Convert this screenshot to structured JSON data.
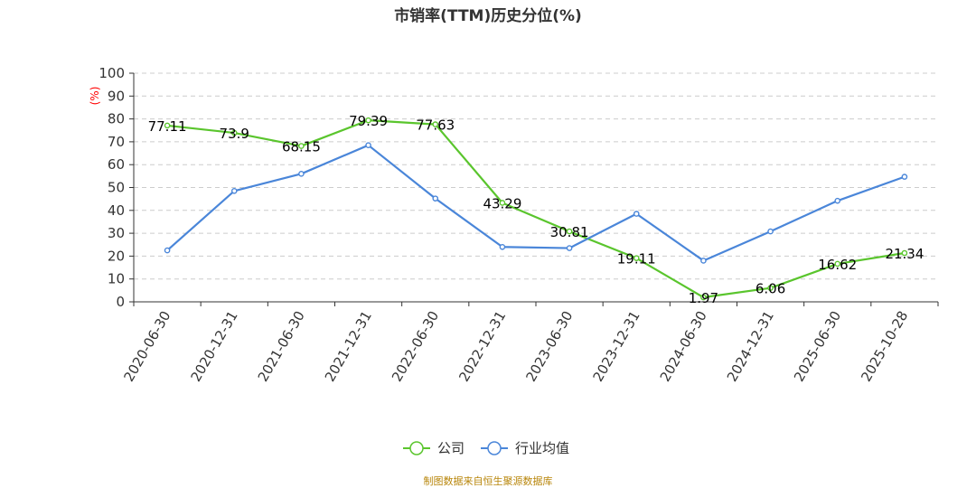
{
  "chart_data": {
    "type": "line",
    "title": "市销率(TTM)历史分位(%)",
    "ylabel": "(%)",
    "ylim": [
      0,
      100
    ],
    "yticks": [
      0,
      10,
      20,
      30,
      40,
      50,
      60,
      70,
      80,
      90,
      100
    ],
    "grid": true,
    "legend_position": "bottom",
    "categories": [
      "2020-06-30",
      "2020-12-31",
      "2021-06-30",
      "2021-12-31",
      "2022-06-30",
      "2022-12-31",
      "2023-06-30",
      "2023-12-31",
      "2024-06-30",
      "2024-12-31",
      "2025-06-30",
      "2025-10-28"
    ],
    "series": [
      {
        "name": "公司",
        "color": "#5ac52d",
        "values": [
          77.11,
          73.9,
          68.15,
          79.39,
          77.63,
          43.29,
          30.81,
          19.11,
          1.97,
          6.06,
          16.62,
          21.34
        ],
        "labels": [
          "77.11",
          "73.9",
          "68.15",
          "79.39",
          "77.63",
          "43.29",
          "30.81",
          "19.11",
          "1.97",
          "6.06",
          "16.62",
          "21.34"
        ]
      },
      {
        "name": "行业均值",
        "color": "#4a86d9",
        "values": [
          22.5,
          48.5,
          56,
          68.5,
          45.2,
          24,
          23.5,
          38.5,
          18,
          30.8,
          44.2,
          54.7
        ]
      }
    ],
    "source": "制图数据来自恒生聚源数据库"
  }
}
